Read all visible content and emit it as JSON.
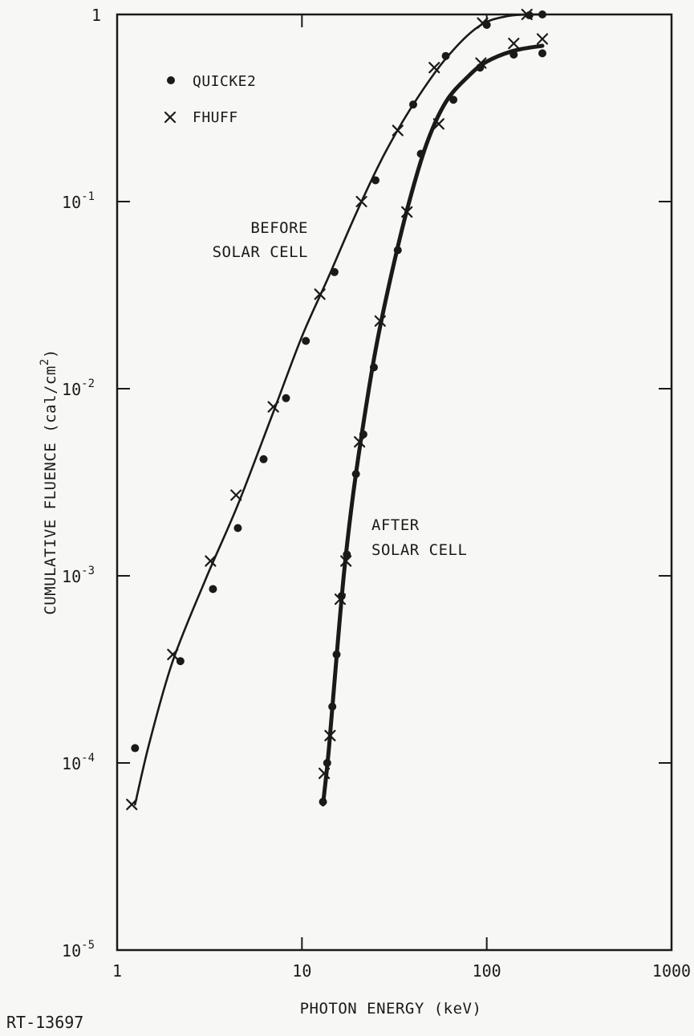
{
  "chart_data": {
    "type": "line",
    "title": "",
    "xlabel": "PHOTON ENERGY (keV)",
    "ylabel": "CUMULATIVE FLUENCE (cal/cm",
    "ylabel_superscript": "2",
    "ylabel_close": ")",
    "x_scale": "log",
    "y_scale": "log",
    "xlim": [
      1,
      1000
    ],
    "ylim": [
      1e-05,
      1
    ],
    "x_ticks": [
      {
        "value": 1,
        "label": "1"
      },
      {
        "value": 10,
        "label": "10"
      },
      {
        "value": 100,
        "label": "100"
      },
      {
        "value": 1000,
        "label": "1000"
      }
    ],
    "y_ticks": [
      {
        "value": 1e-05,
        "base": "10",
        "exp": "-5"
      },
      {
        "value": 0.0001,
        "base": "10",
        "exp": "-4"
      },
      {
        "value": 0.001,
        "base": "10",
        "exp": "-3"
      },
      {
        "value": 0.01,
        "base": "10",
        "exp": "-2"
      },
      {
        "value": 0.1,
        "base": "10",
        "exp": "-1"
      },
      {
        "value": 1,
        "base": "1",
        "exp": ""
      }
    ],
    "grid": false,
    "legend": {
      "position": "top-left",
      "entries": [
        {
          "symbol": "dot",
          "label": "QUICKE2"
        },
        {
          "symbol": "cross",
          "label": "FHUFF"
        }
      ]
    },
    "annotations": [
      {
        "lines": [
          "BEFORE",
          "SOLAR CELL"
        ],
        "x": 10.5,
        "y": 0.06,
        "anchor": "end"
      },
      {
        "lines": [
          "AFTER",
          "SOLAR CELL"
        ],
        "x": 25,
        "y": 0.0018,
        "anchor": "start"
      }
    ],
    "series": [
      {
        "curve": "before",
        "marker": "dot",
        "points": [
          [
            1.25,
            0.00012
          ],
          [
            2.2,
            0.00035
          ],
          [
            3.3,
            0.00085
          ],
          [
            4.5,
            0.0018
          ],
          [
            6.2,
            0.0042
          ],
          [
            8.2,
            0.0089
          ],
          [
            10.5,
            0.018
          ],
          [
            15,
            0.042
          ],
          [
            25,
            0.13
          ],
          [
            40,
            0.33
          ],
          [
            60,
            0.6
          ],
          [
            100,
            0.88
          ],
          [
            170,
            0.99
          ],
          [
            200,
            1.0
          ]
        ]
      },
      {
        "curve": "before",
        "marker": "cross",
        "points": [
          [
            1.2,
            6e-05
          ],
          [
            2.0,
            0.00038
          ],
          [
            3.2,
            0.0012
          ],
          [
            4.4,
            0.0027
          ],
          [
            7.0,
            0.008
          ],
          [
            12.5,
            0.032
          ],
          [
            21,
            0.1
          ],
          [
            33,
            0.24
          ],
          [
            52,
            0.52
          ],
          [
            95,
            0.9
          ],
          [
            165,
            1.0
          ]
        ]
      },
      {
        "curve": "after",
        "marker": "dot",
        "points": [
          [
            13,
            6.2e-05
          ],
          [
            13.7,
            0.0001
          ],
          [
            14.6,
            0.0002
          ],
          [
            15.4,
            0.00038
          ],
          [
            16.4,
            0.00078
          ],
          [
            17.5,
            0.0013
          ],
          [
            19.6,
            0.0035
          ],
          [
            21.5,
            0.0057
          ],
          [
            24.5,
            0.013
          ],
          [
            33,
            0.055
          ],
          [
            44,
            0.18
          ],
          [
            66,
            0.35
          ],
          [
            92,
            0.52
          ],
          [
            140,
            0.61
          ],
          [
            200,
            0.62
          ]
        ]
      },
      {
        "curve": "after",
        "marker": "cross",
        "points": [
          [
            13.2,
            8.8e-05
          ],
          [
            14.2,
            0.00014
          ],
          [
            16.1,
            0.00075
          ],
          [
            17.3,
            0.0012
          ],
          [
            20.5,
            0.0052
          ],
          [
            26.5,
            0.023
          ],
          [
            37,
            0.088
          ],
          [
            55,
            0.26
          ],
          [
            93,
            0.55
          ],
          [
            140,
            0.7
          ],
          [
            200,
            0.74
          ]
        ]
      }
    ],
    "curves": [
      {
        "name": "before",
        "points": [
          [
            1.25,
            6e-05
          ],
          [
            1.5,
            0.00013
          ],
          [
            2.0,
            0.00035
          ],
          [
            3.0,
            0.00095
          ],
          [
            4.5,
            0.0024
          ],
          [
            7.0,
            0.0075
          ],
          [
            10.0,
            0.019
          ],
          [
            14.0,
            0.04
          ],
          [
            20.0,
            0.09
          ],
          [
            28.0,
            0.18
          ],
          [
            40.0,
            0.33
          ],
          [
            60.0,
            0.58
          ],
          [
            90.0,
            0.86
          ],
          [
            130.0,
            0.98
          ],
          [
            200.0,
            1.0
          ]
        ]
      },
      {
        "name": "after",
        "points": [
          [
            13.0,
            6e-05
          ],
          [
            14.0,
            0.00012
          ],
          [
            15.5,
            0.0004
          ],
          [
            17.0,
            0.0011
          ],
          [
            19.0,
            0.0028
          ],
          [
            21.5,
            0.0065
          ],
          [
            25.0,
            0.016
          ],
          [
            30.0,
            0.038
          ],
          [
            37.0,
            0.09
          ],
          [
            47.0,
            0.2
          ],
          [
            60.0,
            0.34
          ],
          [
            80.0,
            0.47
          ],
          [
            100.0,
            0.56
          ],
          [
            140.0,
            0.64
          ],
          [
            200.0,
            0.68
          ]
        ]
      }
    ]
  },
  "footer": {
    "figure_id": "RT-13697"
  }
}
